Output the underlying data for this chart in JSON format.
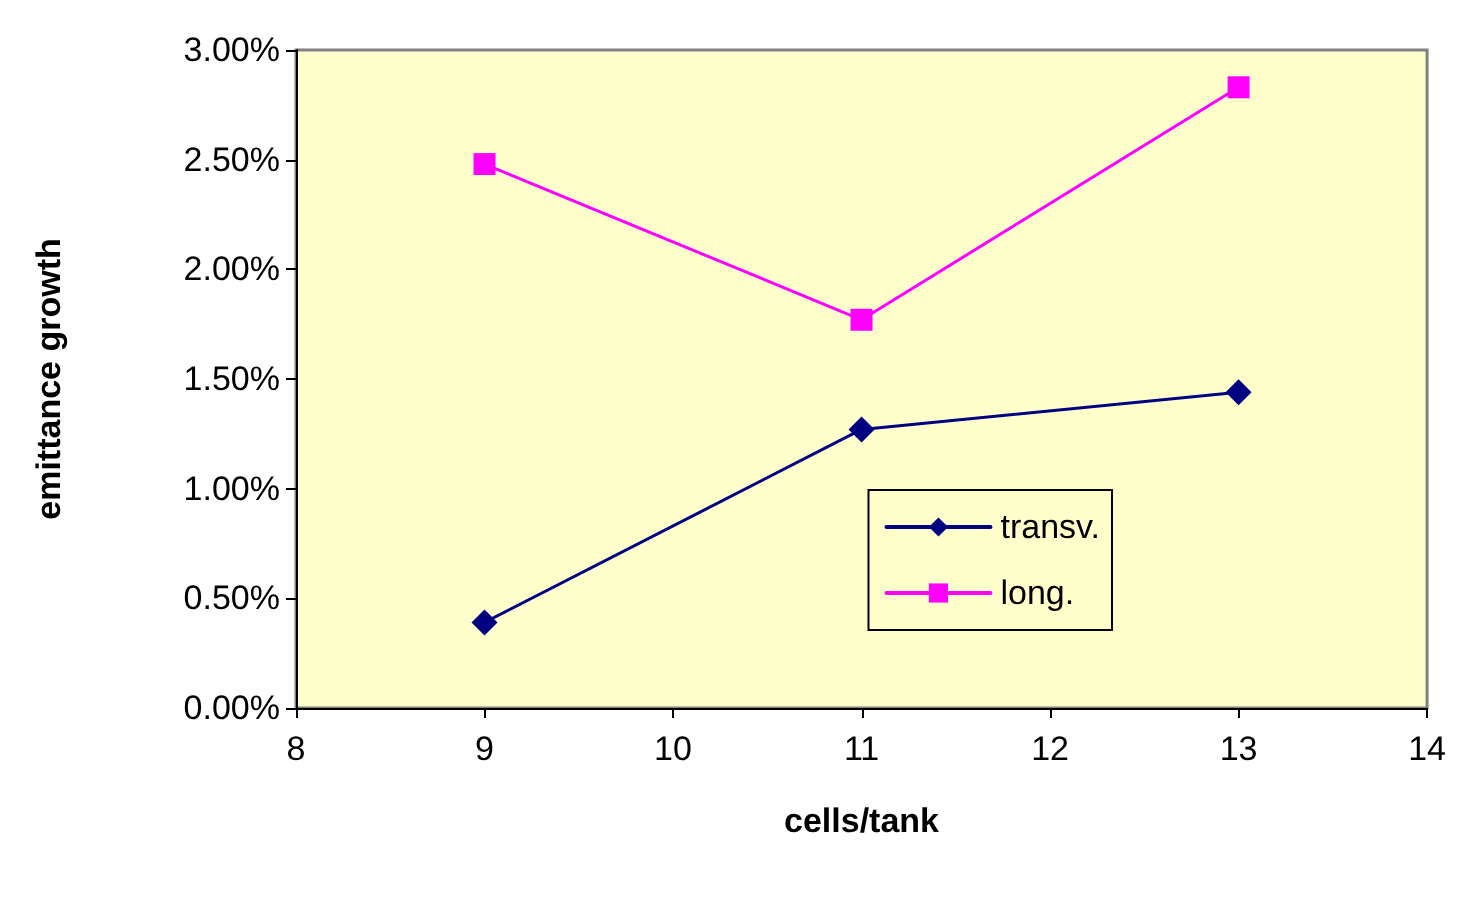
{
  "chart_data": {
    "type": "line",
    "xlabel": "cells/tank",
    "ylabel": "emittance growth",
    "x": [
      9,
      11,
      13
    ],
    "series": [
      {
        "name": "transv.",
        "color": "#000080",
        "marker": "diamond",
        "values": [
          0.39,
          1.27,
          1.44
        ]
      },
      {
        "name": "long.",
        "color": "#ff00ff",
        "marker": "square",
        "values": [
          2.48,
          1.77,
          2.83
        ]
      }
    ],
    "xlim": [
      8,
      14
    ],
    "xticks": [
      8,
      9,
      10,
      11,
      12,
      13,
      14
    ],
    "ylim": [
      0,
      3
    ],
    "yticks": [
      {
        "value": 0,
        "label": "0.00%"
      },
      {
        "value": 0.5,
        "label": "0.50%"
      },
      {
        "value": 1,
        "label": "1.00%"
      },
      {
        "value": 1.5,
        "label": "1.50%"
      },
      {
        "value": 2,
        "label": "2.00%"
      },
      {
        "value": 2.5,
        "label": "2.50%"
      },
      {
        "value": 3,
        "label": "3.00%"
      }
    ],
    "grid": false,
    "legend": "right",
    "line_style": "solid"
  }
}
